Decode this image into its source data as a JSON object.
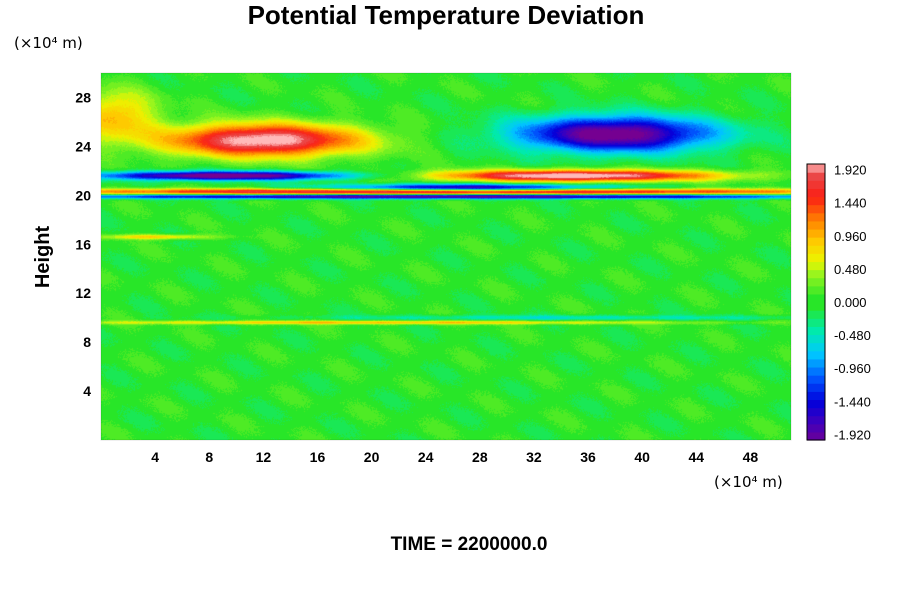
{
  "chart_data": {
    "type": "heatmap",
    "title": "Potential Temperature Deviation",
    "ylabel": "Height",
    "xlabel": "",
    "y_unit": "(×10⁴ m)",
    "x_unit": "(×10⁴ m)",
    "xlim": [
      0,
      51
    ],
    "ylim": [
      0,
      30
    ],
    "x_ticks": [
      4,
      8,
      12,
      16,
      20,
      24,
      28,
      32,
      36,
      40,
      44,
      48
    ],
    "y_ticks": [
      4,
      8,
      12,
      16,
      20,
      24,
      28
    ],
    "colorbar": {
      "range": [
        -2.0,
        2.0
      ],
      "tick_values": [
        -1.92,
        -1.44,
        -0.96,
        -0.48,
        0.0,
        0.48,
        0.96,
        1.44,
        1.92
      ],
      "tick_labels": [
        "-1.920",
        "-1.440",
        "-0.960",
        "-0.480",
        "0.000",
        "0.480",
        "0.960",
        "1.440",
        "1.920"
      ]
    },
    "features": [
      {
        "type": "warm",
        "x": 12,
        "y": 24.5,
        "sx": 7,
        "sy": 1.3,
        "amp": 2.2
      },
      {
        "type": "cold",
        "x": 38,
        "y": 25.0,
        "sx": 7,
        "sy": 1.4,
        "amp": -2.2
      },
      {
        "type": "warm",
        "x": 1,
        "y": 26.5,
        "sx": 3,
        "sy": 2.0,
        "amp": 0.9
      },
      {
        "type": "cold",
        "x": 9,
        "y": 21.6,
        "sx": 9,
        "sy": 0.35,
        "amp": -2.3
      },
      {
        "type": "cold",
        "x": 27,
        "y": 20.6,
        "sx": 10,
        "sy": 0.3,
        "amp": -1.9
      },
      {
        "type": "warm",
        "x": 35,
        "y": 21.6,
        "sx": 10,
        "sy": 0.45,
        "amp": 2.3
      },
      {
        "type": "warm",
        "x": 25,
        "y": 20.3,
        "sx": 30,
        "sy": 0.25,
        "amp": 2.1
      },
      {
        "type": "cold",
        "x": 25,
        "y": 19.9,
        "sx": 30,
        "sy": 0.18,
        "amp": -2.1
      },
      {
        "type": "warm",
        "x": 20,
        "y": 9.6,
        "sx": 22,
        "sy": 0.15,
        "amp": 0.9
      },
      {
        "type": "cold",
        "x": 34,
        "y": 10.0,
        "sx": 18,
        "sy": 0.2,
        "amp": -0.45
      },
      {
        "type": "warm",
        "x": 4,
        "y": 16.6,
        "sx": 4,
        "sy": 0.2,
        "amp": 0.8
      }
    ]
  },
  "time_label": "TIME = 2200000.0"
}
